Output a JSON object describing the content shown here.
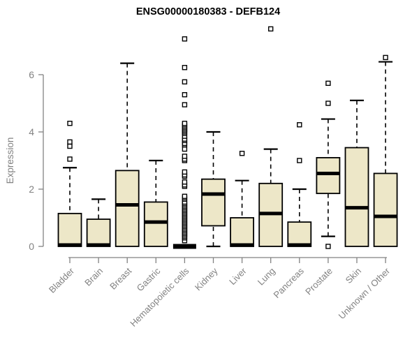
{
  "chart_data": {
    "type": "boxplot",
    "title": "ENSG00000180383 - DEFB124",
    "ylabel": "Expression",
    "yticks": [
      0,
      2,
      4,
      6
    ],
    "ylim": [
      -0.4,
      7.8
    ],
    "grid": "off",
    "legend": "none",
    "colors": {
      "box_fill": "#EDE7C8",
      "box_stroke": "#000000",
      "median": "#000000",
      "axis_text": "#828282",
      "title": "#000000",
      "outlier_fill": "#ffffff"
    },
    "boxes": [
      {
        "label": "Bladder",
        "low": 0,
        "q1": 0,
        "median": 0.05,
        "q3": 1.15,
        "high": 2.75,
        "outliers": [
          3.05,
          3.5,
          3.65,
          4.3
        ]
      },
      {
        "label": "Brain",
        "low": 0,
        "q1": 0,
        "median": 0.05,
        "q3": 0.95,
        "high": 1.65,
        "outliers": []
      },
      {
        "label": "Breast",
        "low": 0,
        "q1": 0,
        "median": 1.45,
        "q3": 2.65,
        "high": 6.4,
        "outliers": []
      },
      {
        "label": "Gastric",
        "low": 0,
        "q1": 0,
        "median": 0.85,
        "q3": 1.55,
        "high": 3.0,
        "outliers": []
      },
      {
        "label": "Hematopoietic cells",
        "low": 0,
        "q1": 0,
        "median": 0,
        "q3": 0,
        "high": 0,
        "outliers": [
          0.2,
          0.3,
          0.35,
          0.4,
          0.45,
          0.5,
          0.55,
          0.6,
          0.65,
          0.7,
          0.75,
          0.8,
          0.85,
          0.9,
          0.95,
          1.0,
          1.05,
          1.1,
          1.15,
          1.2,
          1.25,
          1.3,
          1.35,
          1.4,
          1.45,
          1.5,
          1.55,
          1.65,
          1.7,
          1.75,
          2.1,
          2.15,
          2.25,
          2.45,
          2.5,
          2.6,
          3.0,
          3.05,
          3.15,
          3.4,
          3.55,
          3.6,
          3.7,
          3.75,
          3.85,
          3.95,
          4.0,
          4.05,
          4.1,
          4.15,
          4.2,
          4.25,
          4.3,
          4.95,
          5.3,
          5.75,
          6.25,
          7.25
        ]
      },
      {
        "label": "Kidney",
        "low": 0,
        "q1": 0.72,
        "median": 1.83,
        "q3": 2.35,
        "high": 4.0,
        "outliers": []
      },
      {
        "label": "Liver",
        "low": 0,
        "q1": 0,
        "median": 0.05,
        "q3": 1.0,
        "high": 2.3,
        "outliers": [
          3.25
        ]
      },
      {
        "label": "Lung",
        "low": 0,
        "q1": 0,
        "median": 1.15,
        "q3": 2.2,
        "high": 3.4,
        "outliers": [
          7.6
        ]
      },
      {
        "label": "Pancreas",
        "low": 0,
        "q1": 0,
        "median": 0.05,
        "q3": 0.85,
        "high": 2.0,
        "outliers": [
          3.0,
          4.25
        ]
      },
      {
        "label": "Prostate",
        "low": 0.35,
        "q1": 1.85,
        "median": 2.55,
        "q3": 3.1,
        "high": 4.45,
        "outliers": [
          0,
          5.0,
          5.7
        ]
      },
      {
        "label": "Skin",
        "low": 0,
        "q1": 0,
        "median": 1.35,
        "q3": 3.45,
        "high": 5.1,
        "outliers": []
      },
      {
        "label": "Unknown / Other",
        "low": 0,
        "q1": 0,
        "median": 1.05,
        "q3": 2.55,
        "high": 6.45,
        "outliers": [
          6.6
        ]
      }
    ]
  }
}
